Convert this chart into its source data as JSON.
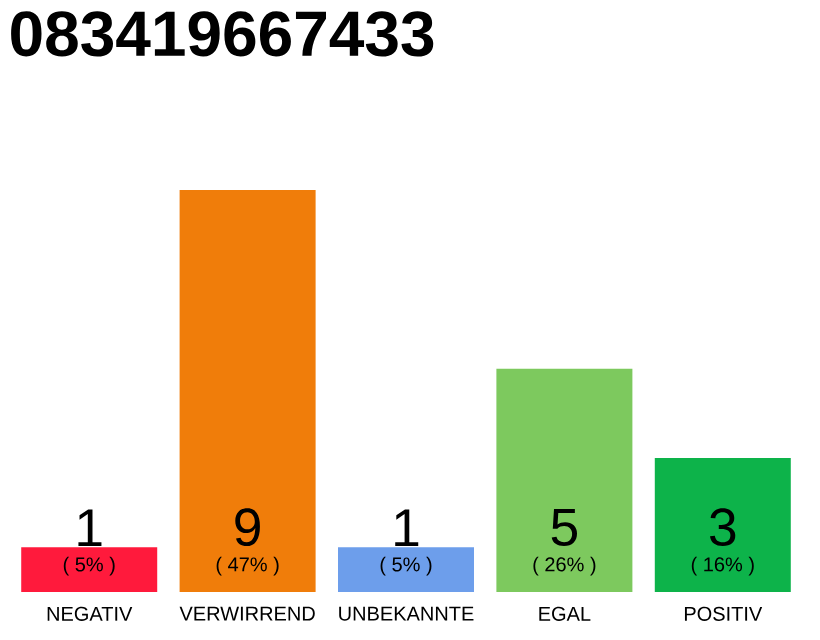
{
  "chart_data": {
    "type": "bar",
    "title": "083419667433",
    "categories": [
      "NEGATIV",
      "VERWIRREND",
      "UNBEKANNTE",
      "EGAL",
      "POSITIV"
    ],
    "values": [
      1,
      9,
      1,
      5,
      3
    ],
    "colors": [
      "#ff1a3c",
      "#f07d0a",
      "#6d9eeb",
      "#7dc95e",
      "#0db34a"
    ],
    "value_labels": [
      "1",
      "9",
      "1",
      "5",
      "3"
    ],
    "annotations": [
      "( 5% )",
      "( 47% )",
      "( 5% )",
      "( 26% )",
      "( 16% )"
    ]
  }
}
